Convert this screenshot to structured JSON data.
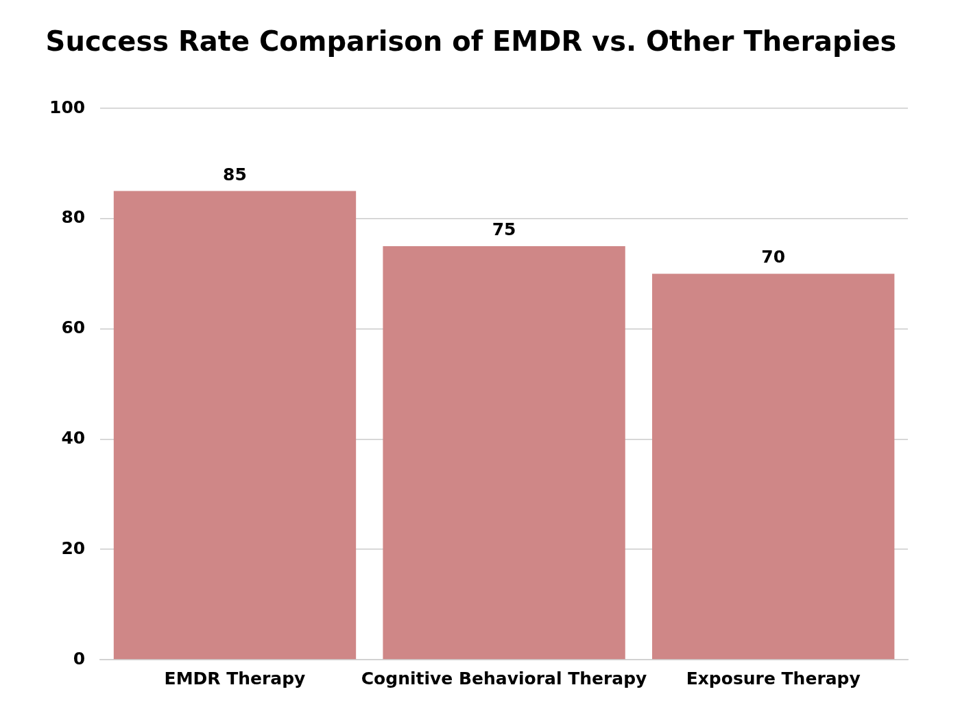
{
  "chart_data": {
    "type": "bar",
    "title": "Success Rate Comparison of EMDR vs. Other Therapies",
    "categories": [
      "EMDR Therapy",
      "Cognitive Behavioral Therapy",
      "Exposure Therapy"
    ],
    "values": [
      85,
      75,
      70
    ],
    "color": "#cf8787",
    "ylim": [
      0,
      100
    ],
    "yticks": [
      0,
      20,
      40,
      60,
      80,
      100
    ],
    "grid": true,
    "data_labels": true
  }
}
